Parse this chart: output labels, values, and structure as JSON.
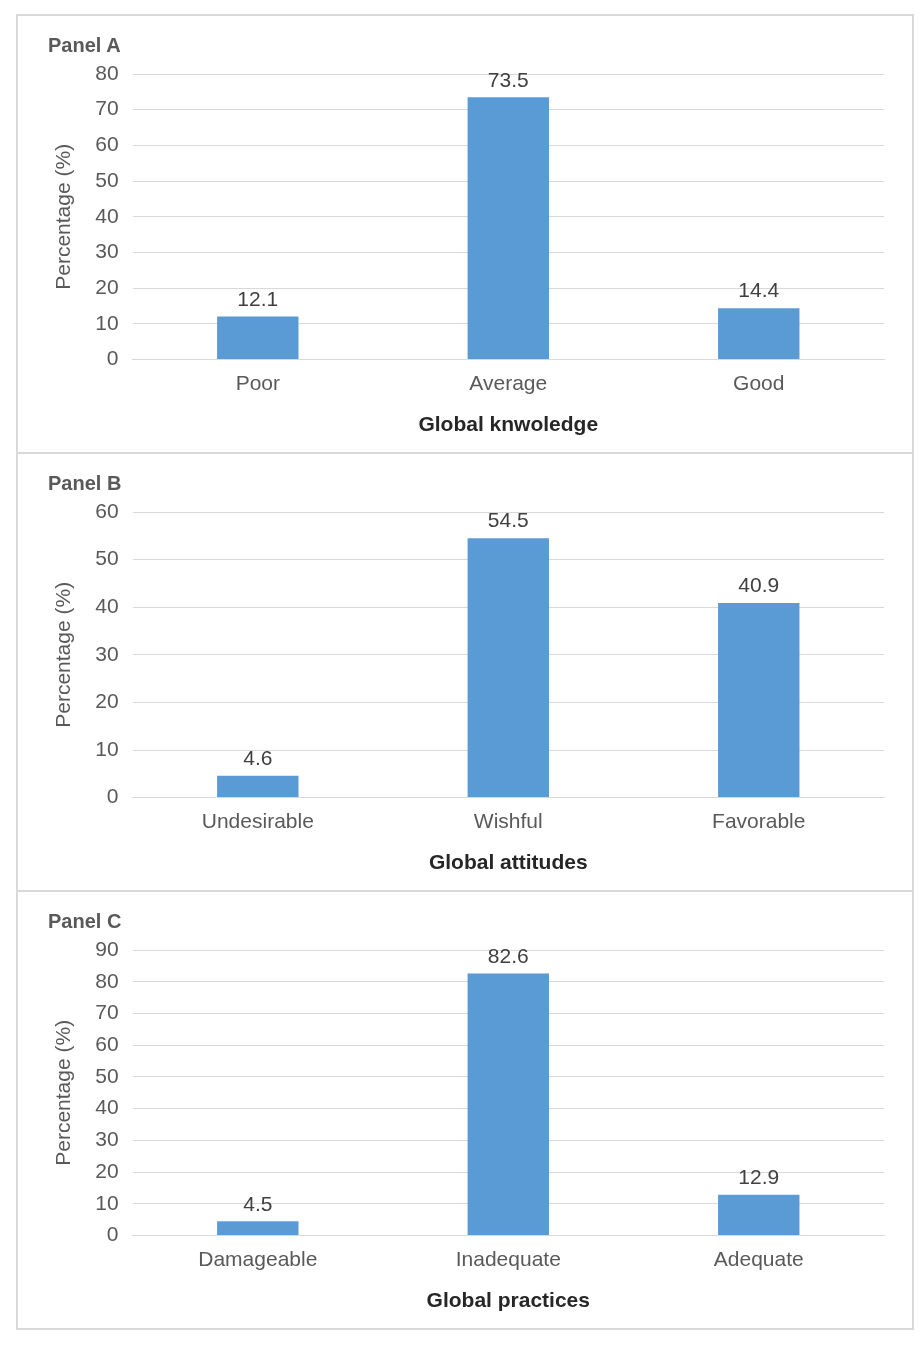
{
  "chart_data": [
    {
      "type": "bar",
      "title": "Panel A",
      "xlabel": "Global knwoledge",
      "ylabel": "Percentage (%)",
      "categories": [
        "Poor",
        "Average",
        "Good"
      ],
      "values": [
        12.1,
        73.5,
        14.4
      ],
      "color": "#5b9bd5",
      "ylim": [
        0,
        80
      ],
      "yticks": [
        0,
        10,
        20,
        30,
        40,
        50,
        60,
        70,
        80
      ],
      "grid": "y",
      "data_labels": true,
      "legend": false
    },
    {
      "type": "bar",
      "title": "Panel B",
      "xlabel": "Global attitudes",
      "ylabel": "Percentage (%)",
      "categories": [
        "Undesirable",
        "Wishful",
        "Favorable"
      ],
      "values": [
        4.6,
        54.5,
        40.9
      ],
      "color": "#5b9bd5",
      "ylim": [
        0,
        60
      ],
      "yticks": [
        0,
        10,
        20,
        30,
        40,
        50,
        60
      ],
      "grid": "y",
      "data_labels": true,
      "legend": false
    },
    {
      "type": "bar",
      "title": "Panel C",
      "xlabel": "Global practices",
      "ylabel": "Percentage (%)",
      "categories": [
        "Damageable",
        "Inadequate",
        "Adequate"
      ],
      "values": [
        4.5,
        82.6,
        12.9
      ],
      "color": "#5b9bd5",
      "ylim": [
        0,
        90
      ],
      "yticks": [
        0,
        10,
        20,
        30,
        40,
        50,
        60,
        70,
        80,
        90
      ],
      "grid": "y",
      "data_labels": true,
      "legend": false
    }
  ]
}
